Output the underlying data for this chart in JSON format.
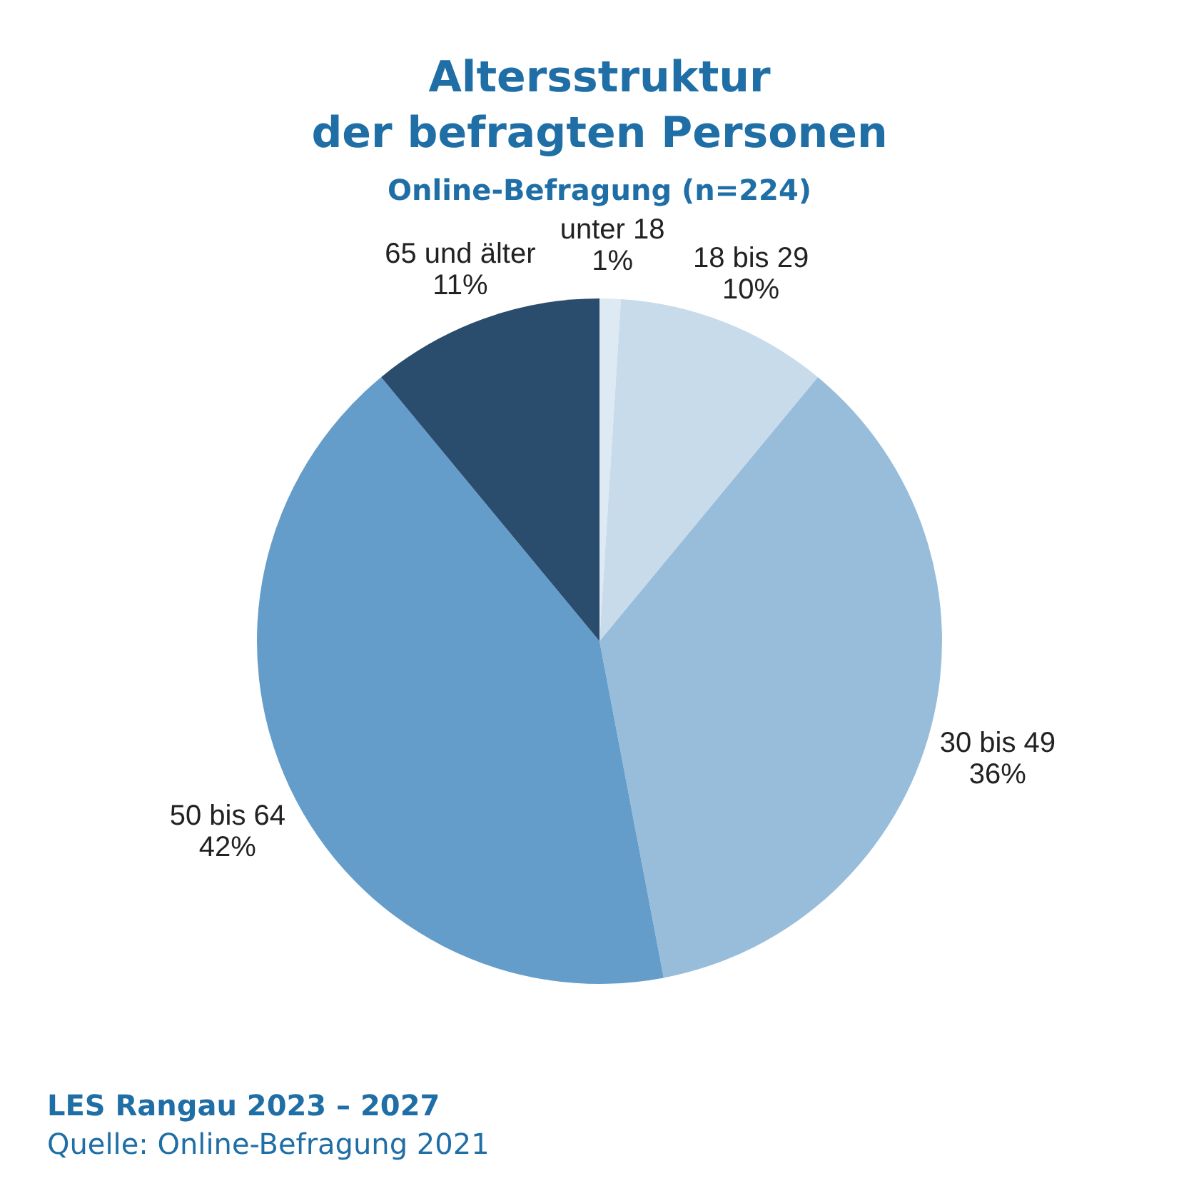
{
  "chart_data": {
    "type": "pie",
    "title": "Altersstruktur\nder befragten Personen",
    "subtitle": "Online-Befragung (n=224)",
    "categories": [
      "unter 18",
      "18 bis 29",
      "30 bis 49",
      "50 bis 64",
      "65 und älter"
    ],
    "values": [
      1,
      10,
      36,
      42,
      11
    ],
    "value_labels": [
      "1%",
      "10%",
      "36%",
      "42%",
      "11%"
    ],
    "colors": [
      "#dde9f3",
      "#c7dbeb",
      "#98bddb",
      "#649dca",
      "#2a4d6e"
    ],
    "annotations": [
      "LES Rangau 2023 – 2027",
      "Quelle: Online-Befragung 2021"
    ]
  }
}
